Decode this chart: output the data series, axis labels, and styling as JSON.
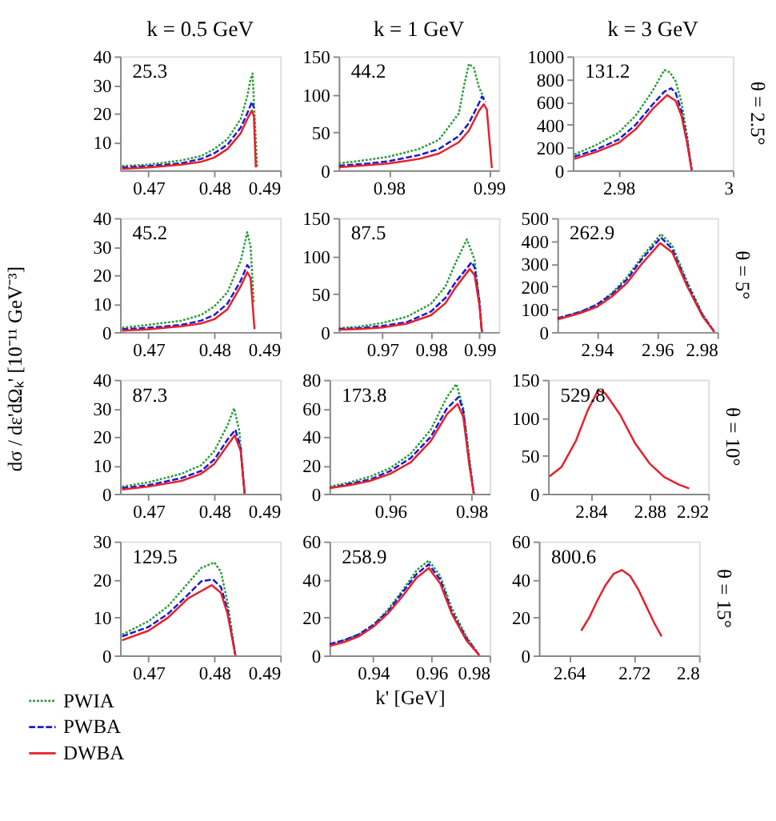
{
  "chart_data": [
    {
      "type": "line",
      "title": "k = 0.5 GeV",
      "xlim": [
        0.4657,
        0.49
      ],
      "xticks": [
        0.47,
        0.48,
        0.49
      ],
      "ylim": [
        0,
        40
      ],
      "yticks": [
        10,
        20,
        30,
        40
      ],
      "grid": false,
      "annotations": [
        "25.3"
      ],
      "series": [
        {
          "color": "#2e9e3e",
          "line_style": "dotted",
          "x": [
            0.466,
            0.47,
            0.475,
            0.478,
            0.48,
            0.482,
            0.484,
            0.485,
            0.4855,
            0.4858,
            0.4862,
            0.4865
          ],
          "values": [
            1.5,
            2,
            3.5,
            5,
            7.5,
            11,
            18,
            26,
            32,
            34,
            15,
            1
          ]
        },
        {
          "color": "#1a1ad6",
          "line_style": "dashed",
          "x": [
            0.466,
            0.47,
            0.475,
            0.478,
            0.48,
            0.482,
            0.484,
            0.485,
            0.4857,
            0.486
          ],
          "values": [
            1,
            1.5,
            2.5,
            4,
            6,
            9,
            15,
            20,
            24,
            22
          ]
        },
        {
          "color": "#e8202a",
          "line_style": "solid",
          "x": [
            0.466,
            0.47,
            0.475,
            0.478,
            0.48,
            0.482,
            0.484,
            0.485,
            0.4857,
            0.486,
            0.4863
          ],
          "values": [
            0.5,
            1,
            2,
            3,
            4.5,
            7.5,
            13,
            18,
            21,
            19,
            1
          ]
        }
      ]
    },
    {
      "type": "line",
      "title": "k = 1 GeV",
      "xlim": [
        0.975,
        0.991
      ],
      "xticks": [
        0.98,
        0.99
      ],
      "ylim": [
        0,
        150
      ],
      "yticks": [
        0,
        50,
        100,
        150
      ],
      "grid": false,
      "annotations": [
        "44.2"
      ],
      "series": [
        {
          "color": "#2e9e3e",
          "line_style": "dotted",
          "x": [
            0.975,
            0.978,
            0.98,
            0.983,
            0.985,
            0.987,
            0.9875,
            0.988,
            0.9885,
            0.989,
            0.9895
          ],
          "values": [
            9,
            14,
            18,
            28,
            40,
            75,
            110,
            140,
            135,
            110,
            95
          ]
        },
        {
          "color": "#1a1ad6",
          "line_style": "dashed",
          "x": [
            0.975,
            0.978,
            0.98,
            0.983,
            0.985,
            0.987,
            0.988,
            0.989,
            0.9893,
            0.9897
          ],
          "values": [
            6,
            9,
            12,
            20,
            28,
            45,
            62,
            88,
            97,
            90
          ]
        },
        {
          "color": "#e8202a",
          "line_style": "solid",
          "x": [
            0.975,
            0.978,
            0.98,
            0.983,
            0.985,
            0.987,
            0.988,
            0.989,
            0.9895,
            0.9898,
            0.9903
          ],
          "values": [
            4,
            7,
            9,
            15,
            22,
            37,
            52,
            78,
            87,
            80,
            3
          ]
        }
      ]
    },
    {
      "type": "line",
      "title": "k = 3 GeV",
      "y2label": "θ = 2.5°",
      "xlim": [
        2.972,
        3.0
      ],
      "xticks": [
        2.98,
        3
      ],
      "ylim": [
        0,
        1000
      ],
      "yticks": [
        0,
        200,
        400,
        600,
        800,
        1000
      ],
      "grid": false,
      "annotations": [
        "131.2"
      ],
      "series": [
        {
          "color": "#2e9e3e",
          "line_style": "dotted",
          "x": [
            2.9723,
            2.976,
            2.98,
            2.983,
            2.986,
            2.988,
            2.989,
            2.99,
            2.991,
            2.992,
            2.9928
          ],
          "values": [
            140,
            220,
            330,
            480,
            700,
            880,
            860,
            780,
            600,
            300,
            0
          ]
        },
        {
          "color": "#1a1ad6",
          "line_style": "dashed",
          "x": [
            2.9723,
            2.976,
            2.98,
            2.983,
            2.986,
            2.988,
            2.9892,
            2.99,
            2.991,
            2.992,
            2.9928
          ],
          "values": [
            120,
            180,
            270,
            400,
            580,
            690,
            720,
            680,
            520,
            260,
            0
          ]
        },
        {
          "color": "#e8202a",
          "line_style": "solid",
          "x": [
            2.9723,
            2.976,
            2.98,
            2.983,
            2.986,
            2.9885,
            2.99,
            2.991,
            2.992,
            2.9928
          ],
          "values": [
            100,
            160,
            240,
            360,
            540,
            660,
            610,
            480,
            240,
            0
          ]
        }
      ]
    },
    {
      "type": "line",
      "ylabel": "dσ / dε'dΩₖ' [10⁻¹¹ GeV⁻³]",
      "xlim": [
        0.4657,
        0.49
      ],
      "xticks": [
        0.47,
        0.48,
        0.49
      ],
      "ylim": [
        0,
        40
      ],
      "yticks": [
        0,
        10,
        20,
        30,
        40
      ],
      "grid": false,
      "annotations": [
        "45.2"
      ],
      "series": [
        {
          "color": "#2e9e3e",
          "line_style": "dotted",
          "x": [
            0.466,
            0.47,
            0.475,
            0.478,
            0.48,
            0.482,
            0.484,
            0.485,
            0.4855,
            0.486
          ],
          "values": [
            1.5,
            2.5,
            4,
            6,
            9,
            14,
            25,
            35,
            30,
            10
          ]
        },
        {
          "color": "#1a1ad6",
          "line_style": "dashed",
          "x": [
            0.466,
            0.47,
            0.475,
            0.478,
            0.48,
            0.482,
            0.484,
            0.485,
            0.4855
          ],
          "values": [
            1,
            1.5,
            2.5,
            4,
            6,
            10,
            18,
            23.5,
            22
          ]
        },
        {
          "color": "#e8202a",
          "line_style": "solid",
          "x": [
            0.466,
            0.47,
            0.475,
            0.478,
            0.48,
            0.482,
            0.484,
            0.485,
            0.4855,
            0.4861
          ],
          "values": [
            0.5,
            1,
            2,
            3,
            4.5,
            8,
            16,
            21,
            19,
            1
          ]
        }
      ]
    },
    {
      "type": "line",
      "xlim": [
        0.961,
        0.994
      ],
      "xticks": [
        0.97,
        0.98,
        0.99
      ],
      "ylim": [
        0,
        150
      ],
      "yticks": [
        0,
        50,
        100,
        150
      ],
      "grid": false,
      "annotations": [
        "87.5"
      ],
      "series": [
        {
          "color": "#2e9e3e",
          "line_style": "dotted",
          "x": [
            0.961,
            0.965,
            0.97,
            0.975,
            0.98,
            0.983,
            0.985,
            0.9874,
            0.989,
            0.99,
            0.9905
          ],
          "values": [
            5,
            7,
            12,
            20,
            37,
            60,
            90,
            122,
            95,
            40,
            0
          ]
        },
        {
          "color": "#1a1ad6",
          "line_style": "dashed",
          "x": [
            0.961,
            0.965,
            0.97,
            0.975,
            0.98,
            0.983,
            0.985,
            0.9884,
            0.989,
            0.99,
            0.9905
          ],
          "values": [
            4,
            5,
            8,
            13,
            27,
            45,
            65,
            92,
            85,
            40,
            0
          ]
        },
        {
          "color": "#e8202a",
          "line_style": "solid",
          "x": [
            0.961,
            0.965,
            0.97,
            0.975,
            0.98,
            0.983,
            0.985,
            0.988,
            0.989,
            0.99,
            0.9905
          ],
          "values": [
            3,
            4,
            6,
            11,
            22,
            38,
            58,
            83,
            75,
            35,
            0
          ]
        }
      ]
    },
    {
      "type": "line",
      "y2label": "θ = 5°",
      "xlim": [
        2.927,
        2.98
      ],
      "xticks": [
        2.94,
        2.96,
        2.98
      ],
      "ylim": [
        0,
        500
      ],
      "yticks": [
        0,
        100,
        200,
        300,
        400,
        500
      ],
      "grid": false,
      "annotations": [
        "262.9"
      ],
      "series": [
        {
          "color": "#2e9e3e",
          "line_style": "dotted",
          "x": [
            2.927,
            2.935,
            2.94,
            2.945,
            2.95,
            2.955,
            2.9613,
            2.965,
            2.97,
            2.975,
            2.979
          ],
          "values": [
            60,
            90,
            120,
            170,
            240,
            330,
            430,
            380,
            220,
            80,
            0
          ]
        },
        {
          "color": "#1a1ad6",
          "line_style": "dashed",
          "x": [
            2.927,
            2.935,
            2.94,
            2.945,
            2.95,
            2.955,
            2.9613,
            2.965,
            2.97,
            2.975,
            2.979
          ],
          "values": [
            60,
            90,
            120,
            165,
            230,
            320,
            415,
            365,
            210,
            75,
            0
          ]
        },
        {
          "color": "#e8202a",
          "line_style": "solid",
          "x": [
            2.927,
            2.935,
            2.94,
            2.945,
            2.95,
            2.955,
            2.961,
            2.965,
            2.97,
            2.975,
            2.979
          ],
          "values": [
            55,
            85,
            110,
            155,
            215,
            300,
            390,
            350,
            200,
            70,
            0
          ]
        }
      ]
    },
    {
      "type": "line",
      "xlim": [
        0.4657,
        0.49
      ],
      "xticks": [
        0.47,
        0.48,
        0.49
      ],
      "ylim": [
        0,
        40
      ],
      "yticks": [
        0,
        10,
        20,
        30,
        40
      ],
      "grid": false,
      "annotations": [
        "87.3"
      ],
      "series": [
        {
          "color": "#2e9e3e",
          "line_style": "dotted",
          "x": [
            0.466,
            0.47,
            0.475,
            0.478,
            0.48,
            0.482,
            0.483,
            0.4838,
            0.4846
          ],
          "values": [
            2.5,
            4,
            7,
            10,
            15,
            24,
            30,
            22,
            0
          ]
        },
        {
          "color": "#1a1ad6",
          "line_style": "dashed",
          "x": [
            0.466,
            0.47,
            0.475,
            0.478,
            0.48,
            0.482,
            0.4832,
            0.484,
            0.4846
          ],
          "values": [
            2,
            3,
            5.5,
            8,
            12,
            19,
            22.5,
            16,
            0
          ]
        },
        {
          "color": "#e8202a",
          "line_style": "solid",
          "x": [
            0.466,
            0.47,
            0.475,
            0.478,
            0.48,
            0.482,
            0.4831,
            0.484,
            0.4846
          ],
          "values": [
            1.5,
            2.5,
            4.5,
            7,
            10.5,
            17,
            20.5,
            15,
            0
          ]
        }
      ]
    },
    {
      "type": "line",
      "xlim": [
        0.945,
        0.9845
      ],
      "xticks": [
        0.96,
        0.98
      ],
      "ylim": [
        0,
        80
      ],
      "yticks": [
        0,
        20,
        40,
        60,
        80
      ],
      "grid": false,
      "annotations": [
        "173.8"
      ],
      "series": [
        {
          "color": "#2e9e3e",
          "line_style": "dotted",
          "x": [
            0.945,
            0.95,
            0.955,
            0.96,
            0.965,
            0.97,
            0.974,
            0.9763,
            0.978,
            0.9795,
            0.9806
          ],
          "values": [
            5,
            8,
            12,
            18,
            28,
            45,
            68,
            77,
            60,
            25,
            0
          ]
        },
        {
          "color": "#1a1ad6",
          "line_style": "dashed",
          "x": [
            0.945,
            0.95,
            0.955,
            0.96,
            0.965,
            0.97,
            0.974,
            0.9769,
            0.978,
            0.9795,
            0.9806
          ],
          "values": [
            4,
            7,
            10,
            16,
            25,
            40,
            60,
            68,
            58,
            22,
            0
          ]
        },
        {
          "color": "#e8202a",
          "line_style": "solid",
          "x": [
            0.945,
            0.95,
            0.955,
            0.96,
            0.965,
            0.97,
            0.974,
            0.9766,
            0.978,
            0.9795,
            0.9806
          ],
          "values": [
            4,
            6,
            9,
            14,
            22,
            37,
            56,
            63,
            54,
            20,
            0
          ]
        }
      ]
    },
    {
      "type": "line",
      "y2label": "θ = 10°",
      "xlim": [
        2.811,
        2.92
      ],
      "xticks": [
        2.84,
        2.88,
        2.92
      ],
      "ylim": [
        0,
        150
      ],
      "yticks": [
        0,
        50,
        100,
        150
      ],
      "grid": false,
      "annotations": [
        "529.8"
      ],
      "series": [
        {
          "color": "#e8202a",
          "line_style": "solid",
          "x": [
            2.812,
            2.82,
            2.83,
            2.838,
            2.845,
            2.85,
            2.86,
            2.87,
            2.88,
            2.89,
            2.9,
            2.907
          ],
          "values": [
            23,
            35,
            70,
            110,
            136,
            132,
            104,
            67,
            40,
            22,
            12,
            7
          ]
        }
      ]
    },
    {
      "type": "line",
      "legend": "bottom left",
      "xlim": [
        0.4657,
        0.49
      ],
      "xticks": [
        0.47,
        0.48,
        0.49
      ],
      "ylim": [
        0,
        30
      ],
      "yticks": [
        0,
        10,
        20,
        30
      ],
      "grid": false,
      "annotations": [
        "129.5"
      ],
      "series": [
        {
          "name": "PWIA",
          "color": "#2e9e3e",
          "line_style": "dotted",
          "x": [
            0.466,
            0.47,
            0.473,
            0.476,
            0.478,
            0.48,
            0.481,
            0.482,
            0.4832
          ],
          "values": [
            5.5,
            9,
            13,
            19,
            23,
            24.5,
            22,
            14,
            0
          ]
        },
        {
          "name": "PWBA",
          "color": "#1a1ad6",
          "line_style": "dashed",
          "x": [
            0.466,
            0.47,
            0.473,
            0.476,
            0.478,
            0.4798,
            0.481,
            0.482,
            0.4832
          ],
          "values": [
            5,
            7.5,
            11,
            16,
            19.5,
            20,
            18,
            12,
            0
          ]
        },
        {
          "name": "DWBA",
          "color": "#e8202a",
          "line_style": "solid",
          "x": [
            0.466,
            0.47,
            0.473,
            0.476,
            0.4796,
            0.481,
            0.482,
            0.4832
          ],
          "values": [
            4,
            6.5,
            10,
            15,
            18.5,
            16.5,
            11,
            0
          ]
        }
      ]
    },
    {
      "type": "line",
      "xlabel": "k' [GeV]",
      "xlim": [
        0.925,
        0.98
      ],
      "xticks": [
        0.94,
        0.96,
        0.98
      ],
      "ylim": [
        0,
        60
      ],
      "yticks": [
        0,
        20,
        40,
        60
      ],
      "grid": false,
      "annotations": [
        "258.9"
      ],
      "series": [
        {
          "color": "#2e9e3e",
          "line_style": "dotted",
          "x": [
            0.925,
            0.93,
            0.935,
            0.94,
            0.945,
            0.95,
            0.955,
            0.9591,
            0.963,
            0.967,
            0.972,
            0.9765
          ],
          "values": [
            6,
            8,
            11,
            16,
            24,
            34,
            45,
            50,
            42,
            25,
            10,
            0
          ]
        },
        {
          "color": "#1a1ad6",
          "line_style": "dashed",
          "x": [
            0.925,
            0.93,
            0.935,
            0.94,
            0.945,
            0.95,
            0.955,
            0.9591,
            0.963,
            0.967,
            0.972,
            0.9765
          ],
          "values": [
            6,
            8,
            11,
            16,
            23,
            33,
            43,
            48,
            40,
            23,
            9,
            0
          ]
        },
        {
          "color": "#e8202a",
          "line_style": "solid",
          "x": [
            0.925,
            0.93,
            0.935,
            0.94,
            0.945,
            0.95,
            0.955,
            0.9591,
            0.963,
            0.967,
            0.972,
            0.9765
          ],
          "values": [
            5,
            7,
            10,
            15,
            22,
            31,
            41,
            46,
            38,
            22,
            8,
            0
          ]
        }
      ]
    },
    {
      "type": "line",
      "y2label": "θ = 15°",
      "xlim": [
        2.603,
        2.8
      ],
      "xticks": [
        2.64,
        2.72,
        2.8
      ],
      "ylim": [
        0,
        60
      ],
      "yticks": [
        0,
        20,
        40,
        60
      ],
      "grid": false,
      "annotations": [
        "800.6"
      ],
      "series": [
        {
          "color": "#e8202a",
          "line_style": "solid",
          "x": [
            2.655,
            2.665,
            2.675,
            2.685,
            2.695,
            2.705,
            2.715,
            2.725,
            2.735,
            2.745,
            2.754
          ],
          "values": [
            13,
            20,
            29,
            37,
            43,
            45,
            42,
            35,
            26,
            17,
            10
          ]
        }
      ]
    }
  ]
}
